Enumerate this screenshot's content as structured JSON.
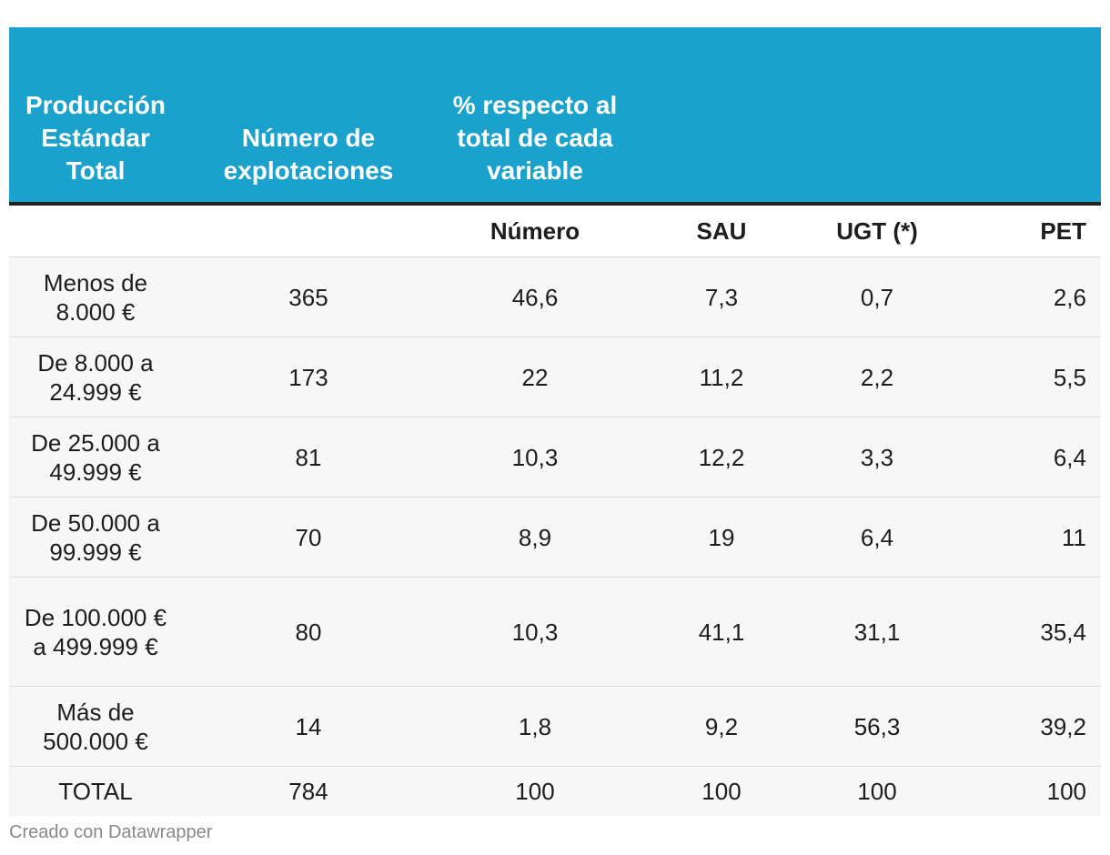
{
  "chart_data": {
    "type": "table",
    "header": {
      "col1": "Producción Estándar Total",
      "col2": "Número de explotaciones",
      "col3": "% respecto al total de cada variable",
      "col4": "",
      "col5": "",
      "col6": ""
    },
    "subheader": [
      "",
      "",
      "Número",
      "SAU",
      "UGT (*)",
      "PET"
    ],
    "rows": [
      {
        "label": "Menos de 8.000 €",
        "explotaciones": "365",
        "numero": "46,6",
        "sau": "7,3",
        "ugt": "0,7",
        "pet": "2,6"
      },
      {
        "label": "De 8.000 a 24.999 €",
        "explotaciones": "173",
        "numero": "22",
        "sau": "11,2",
        "ugt": "2,2",
        "pet": "5,5"
      },
      {
        "label": "De 25.000 a 49.999 €",
        "explotaciones": "81",
        "numero": "10,3",
        "sau": "12,2",
        "ugt": "3,3",
        "pet": "6,4"
      },
      {
        "label": "De 50.000 a 99.999 €",
        "explotaciones": "70",
        "numero": "8,9",
        "sau": "19",
        "ugt": "6,4",
        "pet": "11"
      },
      {
        "label": "De 100.000 € a 499.999 €",
        "explotaciones": "80",
        "numero": "10,3",
        "sau": "41,1",
        "ugt": "31,1",
        "pet": "35,4"
      },
      {
        "label": "Más de 500.000 €",
        "explotaciones": "14",
        "numero": "1,8",
        "sau": "9,2",
        "ugt": "56,3",
        "pet": "39,2"
      },
      {
        "label": "TOTAL",
        "explotaciones": "784",
        "numero": "100",
        "sau": "100",
        "ugt": "100",
        "pet": "100"
      }
    ]
  },
  "footer": {
    "credit": "Creado con Datawrapper"
  },
  "colors": {
    "header_bg": "#1aa1cc",
    "header_text": "#ffffff",
    "row_bg": "#f7f7f7",
    "credit_text": "#888888"
  }
}
